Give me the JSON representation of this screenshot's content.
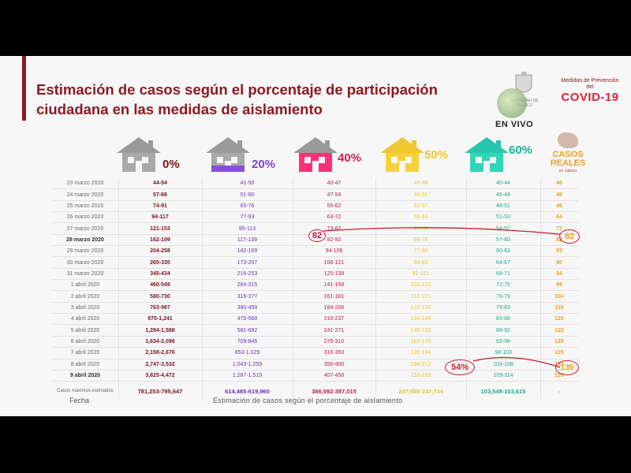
{
  "title": "Estimación de casos según el porcentaje de participación ciudadana en las medidas de aislamiento",
  "logos": {
    "medidas_text": "Medidas de Prevención del",
    "covid_text": "COVID-19",
    "seal_text": "GOBIERNO DE JALISCO"
  },
  "live_badge": "EN VIVO",
  "scenarios": [
    {
      "pct": "0%",
      "color": "#7a1520",
      "roof": "#9a9a9a",
      "body": "#a9a9a9"
    },
    {
      "pct": "20%",
      "color": "#7b3fd0",
      "roof": "#9a9a9a",
      "body": "#a9a9a9"
    },
    {
      "pct": "40%",
      "color": "#d81e5b",
      "roof": "#9a9a9a",
      "body": "#ff2f7a"
    },
    {
      "pct": "50%",
      "color": "#f0c730",
      "roof": "#f0c730",
      "body": "#f6d23a"
    },
    {
      "pct": "60%",
      "color": "#19b39a",
      "roof": "#27c7ad",
      "body": "#2fd6b9"
    }
  ],
  "casos_reales": {
    "label": "CASOS REALES",
    "sublabel": "en Jalisco"
  },
  "rows": [
    {
      "date": "23 marzo 2020",
      "v0": "44-54",
      "v1": "41-50",
      "v2": "40-47",
      "v3": "40-46",
      "v4": "40-44",
      "real": "46"
    },
    {
      "date": "24 marzo 2020",
      "v0": "57-68",
      "v1": "51-60",
      "v2": "47-54",
      "v3": "46-51",
      "v4": "45-48",
      "real": "46"
    },
    {
      "date": "25 marzo 2020",
      "v0": "74-91",
      "v1": "65-76",
      "v2": "55-62",
      "v3": "52-57",
      "v4": "48-51",
      "real": "46"
    },
    {
      "date": "26 marzo 2020",
      "v0": "94-117",
      "v1": "77-93",
      "v2": "63-72",
      "v3": "58-63",
      "v4": "51-53",
      "real": "64"
    },
    {
      "date": "27 marzo 2020",
      "v0": "121-153",
      "v1": "95-113",
      "v2": "73-82",
      "v3": "64-69",
      "v4": "54-57",
      "real": "77"
    },
    {
      "date": "28 marzo 2020",
      "v0": "162-199",
      "v1": "117-139",
      "v2": "82-92",
      "v3": "69-76",
      "v4": "57-60",
      "real": "82",
      "bold": true
    },
    {
      "date": "29 marzo 2020",
      "v0": "204-258",
      "v1": "142-169",
      "v2": "94-106",
      "v3": "77-83",
      "v4": "60-63",
      "real": "83"
    },
    {
      "date": "30 marzo 2020",
      "v0": "265-335",
      "v1": "173-207",
      "v2": "108-121",
      "v3": "84-92",
      "v4": "64-67",
      "real": "90"
    },
    {
      "date": "31 marzo 2020",
      "v0": "345-434",
      "v1": "216-253",
      "v2": "125-139",
      "v3": "92-101",
      "v4": "68-71",
      "real": "94"
    },
    {
      "date": "1 abril 2020",
      "v0": "460-549",
      "v1": "264-315",
      "v2": "141-158",
      "v3": "102-110",
      "v4": "72-75",
      "real": "99"
    },
    {
      "date": "2 abril 2020",
      "v0": "580-730",
      "v1": "316-377",
      "v2": "161-181",
      "v3": "111-121",
      "v4": "76-79",
      "real": "104"
    },
    {
      "date": "3 abril 2020",
      "v0": "763-967",
      "v1": "390-459",
      "v2": "184-206",
      "v3": "122-133",
      "v4": "79-83",
      "real": "116"
    },
    {
      "date": "4 abril 2020",
      "v0": "975-1,241",
      "v1": "470-568",
      "v2": "210-237",
      "v3": "134-148",
      "v4": "83-88",
      "real": "120"
    },
    {
      "date": "5 abril 2020",
      "v0": "1,284-1,588",
      "v1": "581-692",
      "v2": "241-271",
      "v3": "149-162",
      "v4": "88-92",
      "real": "122"
    },
    {
      "date": "6 abril 2020",
      "v0": "1,634-2,096",
      "v1": "709-845",
      "v2": "276-310",
      "v3": "163-178",
      "v4": "93-98",
      "real": "126"
    },
    {
      "date": "7 abril 2020",
      "v0": "2,158-2,676",
      "v1": "853-1,029",
      "v2": "316-350",
      "v3": "180-194",
      "v4": "98-103",
      "real": "135"
    },
    {
      "date": "8 abril 2020",
      "v0": "2,747-3,532",
      "v1": "1,043-1,259",
      "v2": "356-400",
      "v3": "196-212",
      "v4": "103-108",
      "real": "139"
    },
    {
      "date": "9 abril 2020",
      "v0": "3,625-4,472",
      "v1": "1,287-1,519",
      "v2": "407-458",
      "v3": "216-235",
      "v4": "109-114",
      "real": "139",
      "bold": true
    }
  ],
  "max_row": {
    "label": "Casos máximos estimados",
    "v0": "781,253-795,647",
    "v1": "614,485-619,960",
    "v2": "386,592-387,015",
    "v3": "247,688-247,734",
    "v4": "103,548-103,615",
    "real": "-"
  },
  "annotations": {
    "circle_82_left": "82",
    "circle_82_right": "82",
    "circle_54": "54%",
    "circle_139": "139",
    "line_color": "#c0202a"
  },
  "footer": {
    "fecha": "Fecha",
    "estimacion": "Estimación de casos según el porcentaje de aislamiento"
  }
}
